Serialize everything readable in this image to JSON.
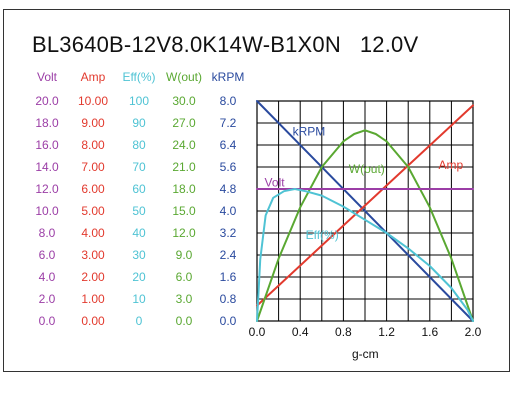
{
  "chart_data": {
    "type": "line",
    "title": "BL3640B-12V8.0K14W-B1X0N",
    "subtitle": "12.0V",
    "xlabel": "g-cm",
    "x_ticks": [
      "0.0",
      "0.4",
      "0.8",
      "1.2",
      "1.6",
      "2.0"
    ],
    "xlim": [
      0,
      2.0
    ],
    "grid": true,
    "y_columns": [
      {
        "header": "Volt",
        "color": "#9b3ea6",
        "ticks": [
          "20.0",
          "18.0",
          "16.0",
          "14.0",
          "12.0",
          "10.0",
          "8.0",
          "6.0",
          "4.0",
          "2.0",
          "0.0"
        ]
      },
      {
        "header": "Amp",
        "color": "#e23a2e",
        "ticks": [
          "10.00",
          "9.00",
          "8.00",
          "7.00",
          "6.00",
          "5.00",
          "4.00",
          "3.00",
          "2.00",
          "1.00",
          "0.00"
        ]
      },
      {
        "header": "Eff(%)",
        "color": "#4fc3d4",
        "ticks": [
          "100",
          "90",
          "80",
          "70",
          "60",
          "50",
          "40",
          "30",
          "20",
          "10",
          "0"
        ]
      },
      {
        "header": "W(out)",
        "color": "#5aa832",
        "ticks": [
          "30.0",
          "27.0",
          "24.0",
          "21.0",
          "18.0",
          "15.0",
          "12.0",
          "9.0",
          "6.0",
          "3.0",
          "0.0"
        ]
      },
      {
        "header": "kRPM",
        "color": "#2a4a9e",
        "ticks": [
          "8.0",
          "7.2",
          "6.4",
          "5.6",
          "4.8",
          "4.0",
          "3.2",
          "2.4",
          "1.6",
          "0.8",
          "0.0"
        ]
      }
    ],
    "series": [
      {
        "name": "kRPM",
        "color": "#2a4a9e",
        "axis": "kRPM",
        "x": [
          0,
          2.0
        ],
        "y": [
          8.0,
          0.0
        ]
      },
      {
        "name": "Amp",
        "color": "#e23a2e",
        "axis": "Amp",
        "x": [
          0,
          2.0
        ],
        "y": [
          0.7,
          9.8
        ]
      },
      {
        "name": "W(out)",
        "color": "#5aa832",
        "axis": "W(out)",
        "x": [
          0,
          0.2,
          0.4,
          0.6,
          0.8,
          0.9,
          1.0,
          1.1,
          1.2,
          1.4,
          1.6,
          1.8,
          2.0
        ],
        "y": [
          0,
          8.5,
          15.5,
          21.0,
          24.5,
          25.5,
          26.0,
          25.5,
          24.5,
          21.0,
          15.5,
          8.5,
          0
        ]
      },
      {
        "name": "Volt",
        "color": "#9b3ea6",
        "axis": "Volt",
        "x": [
          0,
          2.0
        ],
        "y": [
          12.0,
          12.0
        ]
      },
      {
        "name": "Eff(%)",
        "color": "#4fc3d4",
        "axis": "Eff(%)",
        "x": [
          0,
          0.03,
          0.08,
          0.15,
          0.25,
          0.35,
          0.45,
          0.6,
          0.8,
          1.0,
          1.2,
          1.4,
          1.6,
          1.8,
          1.95,
          2.0
        ],
        "y": [
          0,
          28,
          48,
          56,
          59,
          60,
          59,
          57,
          52,
          46,
          40,
          33,
          25,
          15,
          5,
          0
        ]
      }
    ],
    "annotations": [
      {
        "text": "kRPM",
        "x": 0.33,
        "axis": "kRPM",
        "y": 6.9,
        "color": "#2a4a9e"
      },
      {
        "text": "W(out)",
        "x": 0.85,
        "axis": "W(out)",
        "y": 20.7,
        "color": "#5aa832"
      },
      {
        "text": "Amp",
        "x": 1.68,
        "axis": "Amp",
        "y": 7.1,
        "color": "#e23a2e"
      },
      {
        "text": "Volt",
        "x": 0.07,
        "axis": "Volt",
        "y": 12.6,
        "color": "#9b3ea6"
      },
      {
        "text": "Eff(%)",
        "x": 0.45,
        "axis": "Eff(%)",
        "y": 39,
        "color": "#4fc3d4"
      }
    ]
  }
}
